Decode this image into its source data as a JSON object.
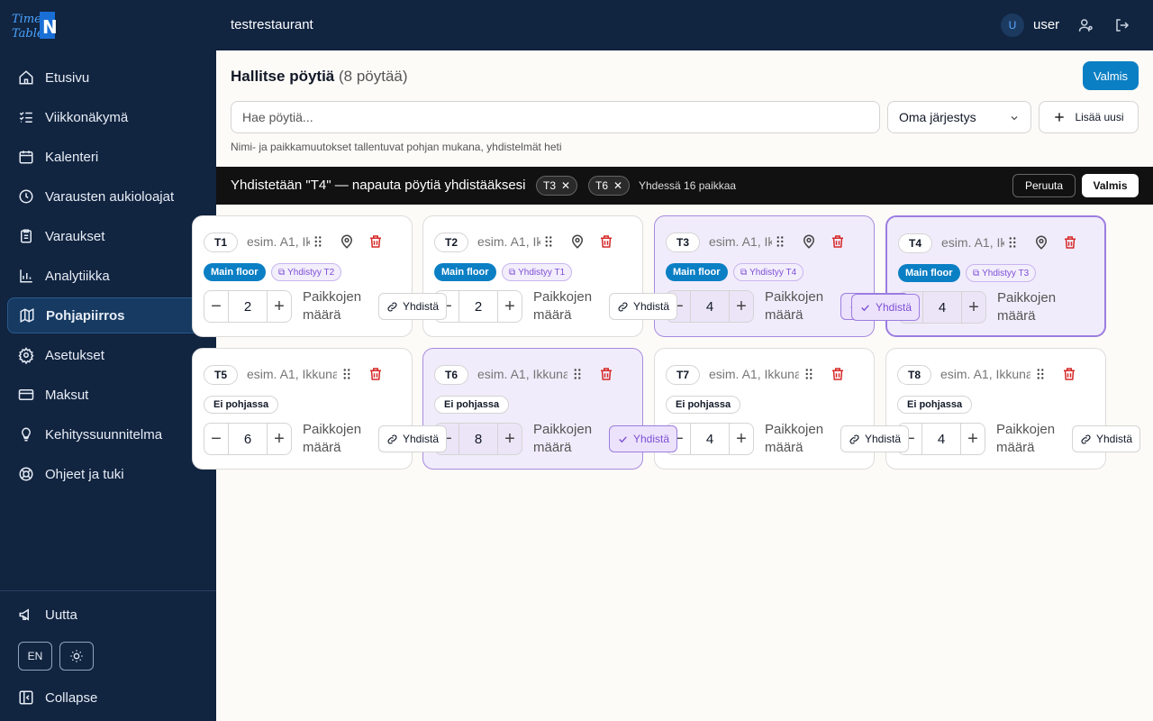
{
  "app": {
    "logo_text": "TimeTable N"
  },
  "sidebar": {
    "items": [
      {
        "label": "Etusivu",
        "icon": "home-icon"
      },
      {
        "label": "Viikkonäkymä",
        "icon": "list-check-icon"
      },
      {
        "label": "Kalenteri",
        "icon": "calendar-icon"
      },
      {
        "label": "Varausten aukioloajat",
        "icon": "clock-icon"
      },
      {
        "label": "Varaukset",
        "icon": "clipboard-icon"
      },
      {
        "label": "Analytiikka",
        "icon": "bar-chart-icon"
      },
      {
        "label": "Pohjapiirros",
        "icon": "map-icon",
        "active": true
      },
      {
        "label": "Asetukset",
        "icon": "gear-icon"
      },
      {
        "label": "Maksut",
        "icon": "credit-card-icon"
      },
      {
        "label": "Kehityssuunnitelma",
        "icon": "lightbulb-icon"
      },
      {
        "label": "Ohjeet ja tuki",
        "icon": "lifebuoy-icon"
      }
    ],
    "news_label": "Uutta",
    "language": "EN",
    "collapse_label": "Collapse"
  },
  "topbar": {
    "restaurant": "testrestaurant",
    "avatar_initial": "U",
    "username": "user"
  },
  "page": {
    "title": "Hallitse pöytiä",
    "count": "(8 pöytää)",
    "done_label": "Valmis",
    "search_placeholder": "Hae pöytiä...",
    "sort_value": "Oma järjestys",
    "add_label": "Lisää uusi",
    "hint": "Nimi- ja paikkamuutokset tallentuvat pohjan mukana, yhdistelmät heti"
  },
  "merge_bar": {
    "text": "Yhdistetään \"T4\" — napauta pöytiä yhdistääksesi",
    "chips": [
      "T3",
      "T6"
    ],
    "total": "Yhdessä 16 paikkaa",
    "cancel_label": "Peruuta",
    "done_label": "Valmis"
  },
  "cards": {
    "name_placeholder": "esim. A1, Ikkuna",
    "seats_label": "Paikkojen määrä",
    "merge_label": "Yhdistä",
    "floor_label": "Main floor",
    "no_floor_label": "Ei pohjassa",
    "tables": [
      {
        "id": "T1",
        "seats": "2",
        "floor": true,
        "merged_with": "Yhdistyy T2",
        "state": "normal"
      },
      {
        "id": "T2",
        "seats": "2",
        "floor": true,
        "merged_with": "Yhdistyy T1",
        "state": "normal"
      },
      {
        "id": "T3",
        "seats": "4",
        "floor": true,
        "merged_with": "Yhdistyy T4",
        "state": "selected"
      },
      {
        "id": "T4",
        "seats": "4",
        "floor": true,
        "merged_with": "Yhdistyy T3",
        "state": "focus"
      },
      {
        "id": "T5",
        "seats": "6",
        "floor": false,
        "state": "normal"
      },
      {
        "id": "T6",
        "seats": "8",
        "floor": false,
        "state": "selected"
      },
      {
        "id": "T7",
        "seats": "4",
        "floor": false,
        "state": "normal"
      },
      {
        "id": "T8",
        "seats": "4",
        "floor": false,
        "state": "normal"
      }
    ]
  },
  "colors": {
    "sidebar_bg": "#112440",
    "primary": "#0b7fc4",
    "merge_purple": "#7c4fd4",
    "delete_red": "#d62828"
  }
}
